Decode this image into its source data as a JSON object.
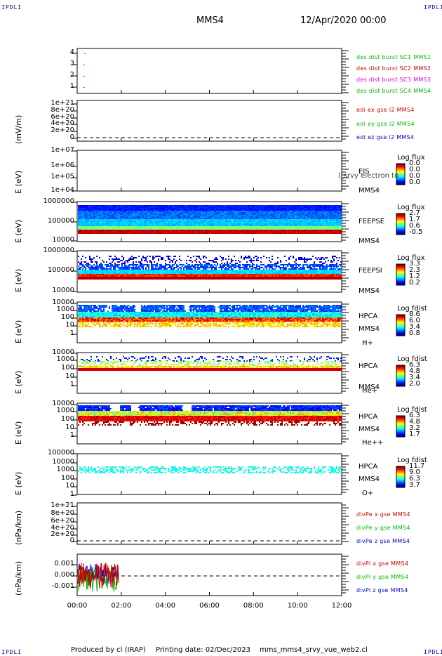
{
  "header": {
    "corner_left_top": "IPDLI",
    "corner_right_top": "IPDLI",
    "corner_left_bottom": "IPDLI",
    "corner_right_bottom": "IPDLI",
    "spacecraft": "MMS4",
    "datetime": "12/Apr/2020 00:00"
  },
  "footer": {
    "produced_by": "Produced by cl (IRAP)",
    "printing_date": "Printing date: 02/Dec/2023",
    "script": "mms_mms4_srvy_vue_web2.cl"
  },
  "colors": {
    "red": "#cc0000",
    "green": "#00bb00",
    "blue": "#0000cc",
    "magenta": "#dd00dd",
    "frame": "#000000"
  },
  "chart_data": [
    {
      "type": "scatter",
      "ylabel": "",
      "y_ticks": [
        "4",
        "3",
        "2",
        "1"
      ],
      "series": [
        {
          "name": "des dist burst SC1 MMS1",
          "color": "#00bb00",
          "points": [
            [
              0.18,
              4
            ]
          ]
        },
        {
          "name": "des dist burst SC2 MMS2",
          "color": "#cc0000",
          "points": [
            [
              0.15,
              3
            ]
          ]
        },
        {
          "name": "des dist burst SC3 MMS3",
          "color": "#dd00dd",
          "points": [
            [
              0.15,
              2
            ]
          ]
        },
        {
          "name": "des dist burst SC4 MMS4",
          "color": "#00bb00",
          "points": [
            [
              0.15,
              1
            ]
          ]
        }
      ]
    },
    {
      "type": "line",
      "ylabel": "(mV/m)",
      "y_ticks": [
        "1e+21",
        "8e+20",
        "6e+20",
        "4e+20",
        "2e+20",
        "0"
      ],
      "series": [
        {
          "name": "edi ex gse l2 MMS4",
          "color": "#cc0000"
        },
        {
          "name": "edi ey gse l2 MMS4",
          "color": "#00bb00"
        },
        {
          "name": "edi ez gse l2 MMS4",
          "color": "#0000cc"
        }
      ]
    },
    {
      "type": "heatmap",
      "ylabel": "E (eV)",
      "y_ticks": [
        "1e+07",
        "1e+06",
        "1e+05",
        "1e+04"
      ],
      "side_labels": [
        "EIS",
        "MMS4"
      ],
      "overlay_text": "l_srvy electron to",
      "colorbar": {
        "title": "Log flux",
        "values": [
          "0.0",
          "0.0",
          "0.0",
          "0.0"
        ]
      }
    },
    {
      "type": "heatmap",
      "ylabel": "E (eV)",
      "y_ticks": [
        "1000000",
        "100000",
        "10000"
      ],
      "side_labels": [
        "FEEPSE",
        "MMS4"
      ],
      "colorbar": {
        "title": "Log flux",
        "values": [
          "2.7",
          "1.7",
          "0.6",
          "-0.5"
        ]
      }
    },
    {
      "type": "heatmap",
      "ylabel": "E (eV)",
      "y_ticks": [
        "1000000",
        "100000",
        "10000"
      ],
      "side_labels": [
        "FEEPSI",
        "MMS4"
      ],
      "colorbar": {
        "title": "Log flux",
        "values": [
          "3.3",
          "2.3",
          "1.2",
          "0.2"
        ]
      }
    },
    {
      "type": "heatmap",
      "ylabel": "E (eV)",
      "y_ticks": [
        "10000",
        "1000",
        "100",
        "10",
        "1"
      ],
      "side_labels": [
        "HPCA",
        "MMS4",
        "H+"
      ],
      "colorbar": {
        "title": "Log fdist",
        "values": [
          "8.6",
          "6.0",
          "3.4",
          "0.8"
        ]
      }
    },
    {
      "type": "heatmap",
      "ylabel": "E (eV)",
      "y_ticks": [
        "10000",
        "1000",
        "100",
        "10",
        "1"
      ],
      "side_labels": [
        "HPCA",
        "MMS4",
        "He+"
      ],
      "colorbar": {
        "title": "Log fdist",
        "values": [
          "6.3",
          "4.8",
          "3.4",
          "2.0"
        ]
      }
    },
    {
      "type": "heatmap",
      "ylabel": "E (eV)",
      "y_ticks": [
        "10000",
        "1000",
        "100",
        "10",
        "1"
      ],
      "side_labels": [
        "HPCA",
        "MMS4",
        "He++"
      ],
      "colorbar": {
        "title": "Log fdist",
        "values": [
          "6.3",
          "4.8",
          "3.2",
          "1.7"
        ]
      }
    },
    {
      "type": "heatmap",
      "ylabel": "E (eV)",
      "y_ticks": [
        "100000",
        "10000",
        "1000",
        "100",
        "10",
        "1"
      ],
      "side_labels": [
        "HPCA",
        "MMS4",
        "O+"
      ],
      "colorbar": {
        "title": "Log fdist",
        "values": [
          "11.7",
          "9.0",
          "6.3",
          "3.7"
        ]
      }
    },
    {
      "type": "line",
      "ylabel": "(nPa/km)",
      "y_ticks": [
        "1e+21",
        "8e+20",
        "6e+20",
        "4e+20",
        "2e+20",
        "0"
      ],
      "series": [
        {
          "name": "divPe x gse MMS4",
          "color": "#cc0000"
        },
        {
          "name": "divPe y gse MMS4",
          "color": "#00bb00"
        },
        {
          "name": "divPe z gse MMS4",
          "color": "#0000cc"
        }
      ]
    },
    {
      "type": "line",
      "ylabel": "(nPa/km)",
      "y_ticks": [
        "0.001",
        "0.000",
        "-0.001"
      ],
      "ylim": [
        -0.0015,
        0.0015
      ],
      "data_extent_hours": [
        0,
        1.9
      ],
      "series": [
        {
          "name": "divPi x gse MMS4",
          "color": "#cc0000"
        },
        {
          "name": "divPi y gse MMS4",
          "color": "#00bb00"
        },
        {
          "name": "divPi z gse MMS4",
          "color": "#0000cc"
        }
      ]
    }
  ],
  "x_axis": {
    "ticks": [
      "00:00",
      "02:00",
      "04:00",
      "06:00",
      "08:00",
      "10:00",
      "12:00"
    ]
  }
}
